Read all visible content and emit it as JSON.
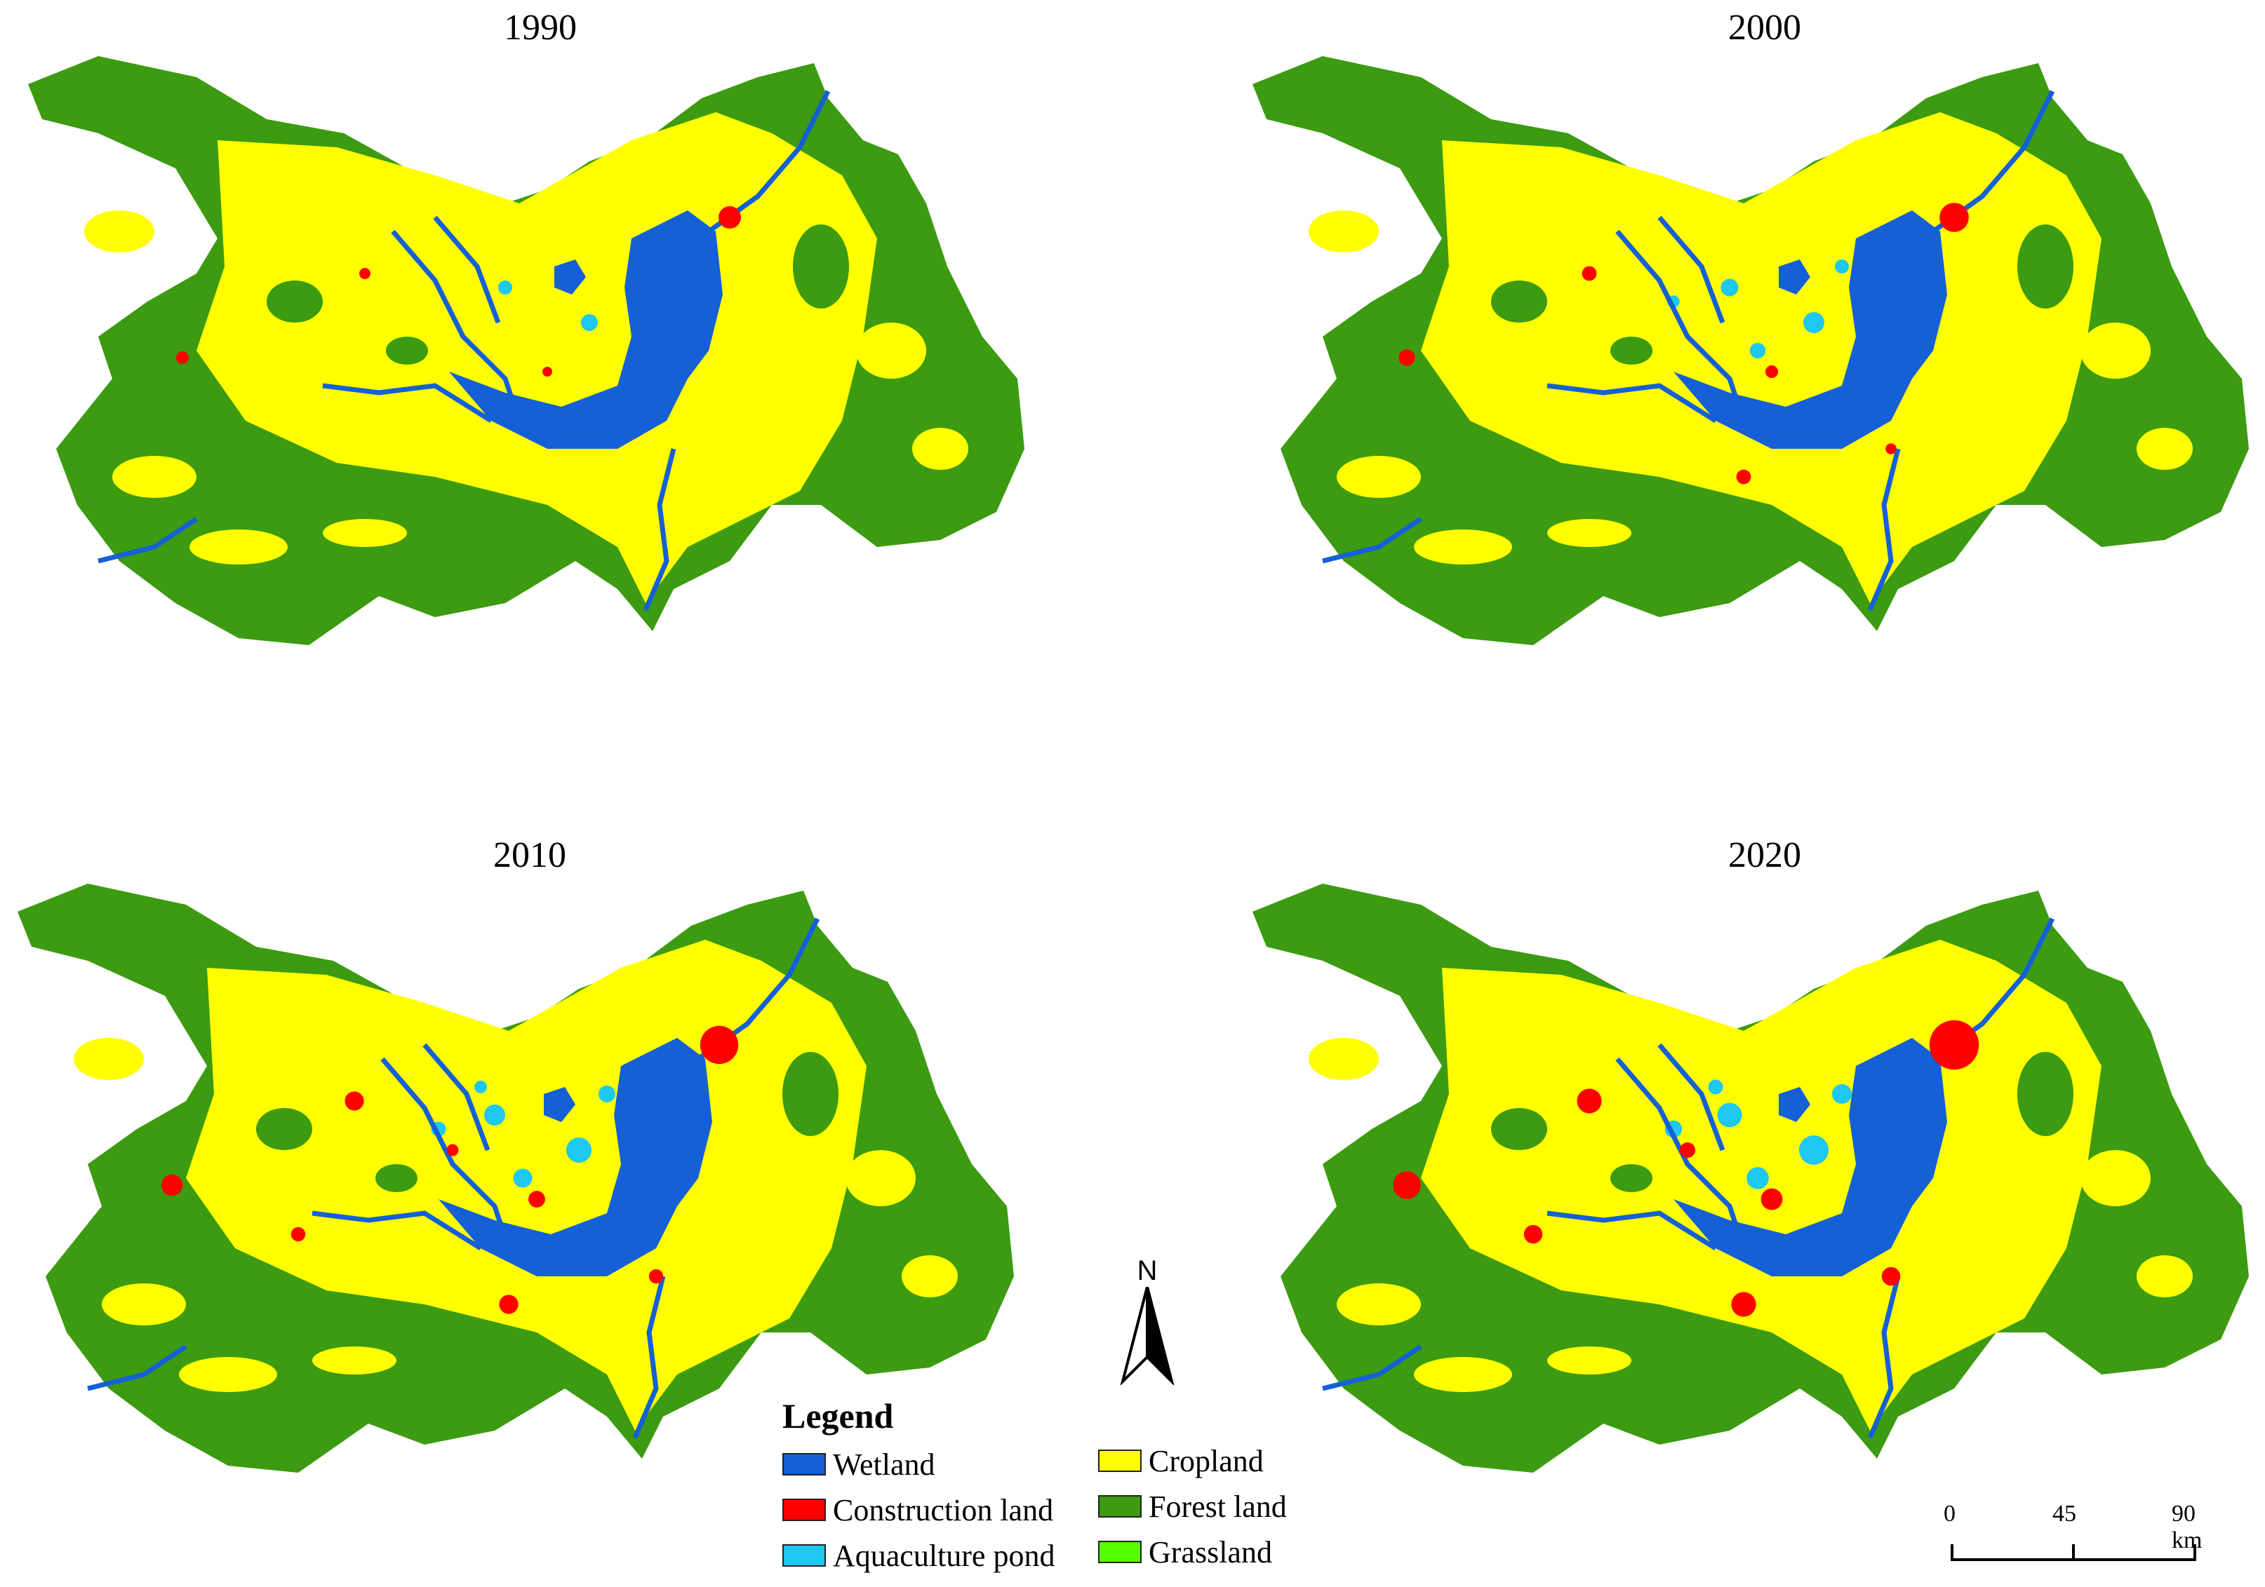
{
  "panels": [
    {
      "title": "1990"
    },
    {
      "title": "2000"
    },
    {
      "title": "2010"
    },
    {
      "title": "2020"
    }
  ],
  "north_arrow": {
    "label": "N"
  },
  "legend": {
    "title": "Legend",
    "items": [
      {
        "label": "Wetland",
        "color": "#1560d6"
      },
      {
        "label": "Construction land",
        "color": "#ff0000"
      },
      {
        "label": "Aquaculture pond",
        "color": "#1ec8f0"
      },
      {
        "label": "Cropland",
        "color": "#ffff00"
      },
      {
        "label": "Forest land",
        "color": "#3c9b10"
      },
      {
        "label": "Grassland",
        "color": "#55ff00"
      }
    ]
  },
  "scale_bar": {
    "labels": [
      "0",
      "45",
      "90 km"
    ]
  }
}
